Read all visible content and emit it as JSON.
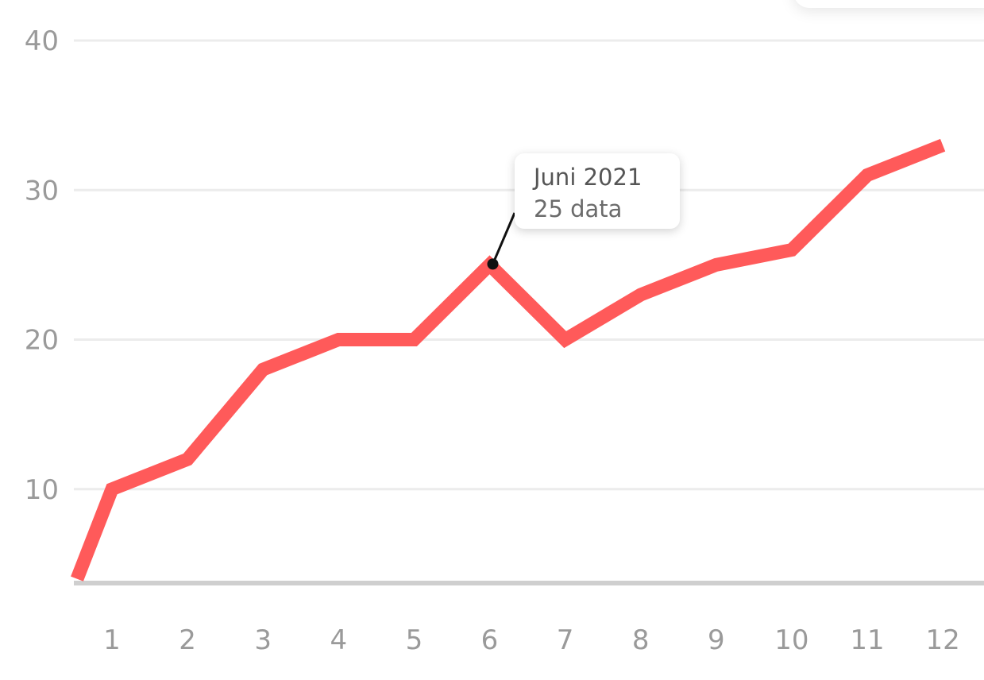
{
  "chart_data": {
    "type": "line",
    "categories": [
      "1",
      "2",
      "3",
      "4",
      "5",
      "6",
      "7",
      "8",
      "9",
      "10",
      "11",
      "12"
    ],
    "series": [
      {
        "color": "#ff5a5a",
        "values": [
          10,
          12,
          18,
          20,
          20,
          25,
          20,
          23,
          25,
          26,
          31,
          33
        ]
      }
    ],
    "start_value": 4,
    "yticks": [
      "10",
      "20",
      "30",
      "40"
    ],
    "ylim": [
      0,
      40
    ],
    "grid": true,
    "tooltip": {
      "title": "Juni 2021",
      "value": "25 data",
      "category_index": 5
    },
    "colors": {
      "line": "#ff5a5a",
      "grid": "#ececec",
      "axis": "#cfcfcf",
      "ticks": "#9a9a9a"
    }
  }
}
